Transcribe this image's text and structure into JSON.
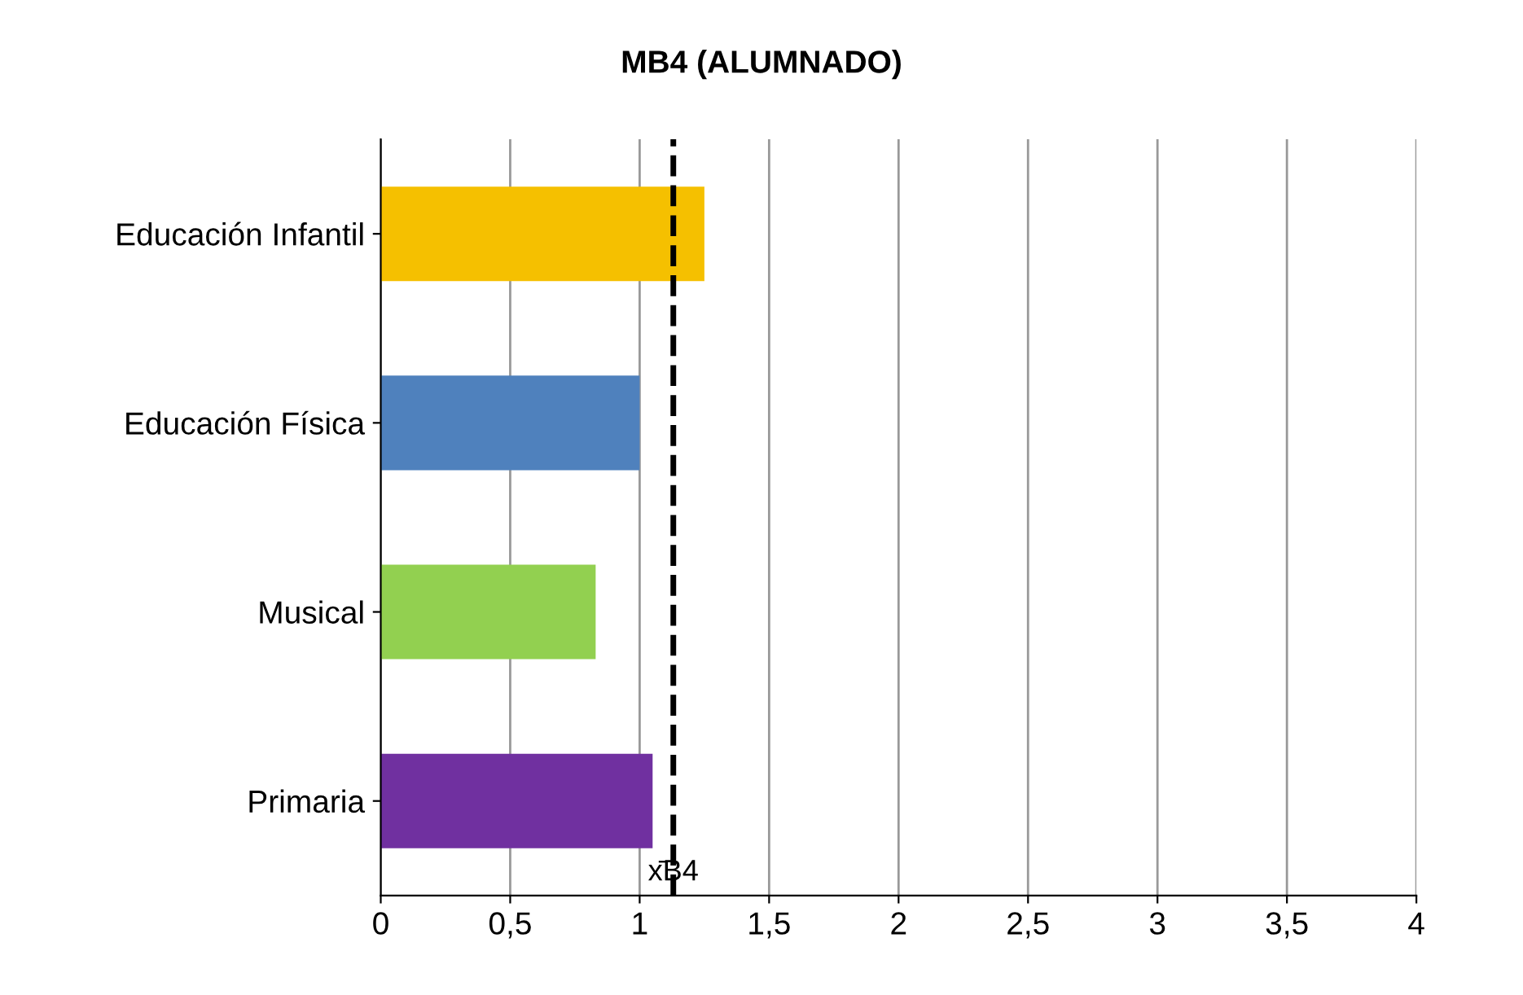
{
  "chart_data": {
    "type": "bar",
    "orientation": "horizontal",
    "title": "MB4 (ALUMNADO)",
    "categories": [
      "Educación Infantil",
      "Educación Física",
      "Musical",
      "Primaria"
    ],
    "values": [
      1.25,
      1.0,
      0.83,
      1.05
    ],
    "colors": [
      "#f5c000",
      "#4f81bd",
      "#92d050",
      "#7030a0"
    ],
    "xlim": [
      0,
      4
    ],
    "xticks": [
      0,
      {
        "value": 0.5,
        "label": "0,5"
      },
      1,
      {
        "value": 1.5,
        "label": "1,5"
      },
      2,
      {
        "value": 2.5,
        "label": "2,5"
      },
      3,
      {
        "value": 3.5,
        "label": "3,5"
      },
      4
    ],
    "grid": "x",
    "ref_lines": [
      {
        "axis": "x",
        "value": 1.13,
        "label": "x̄B4",
        "color": "#000000",
        "line_style": "dashed"
      }
    ]
  }
}
